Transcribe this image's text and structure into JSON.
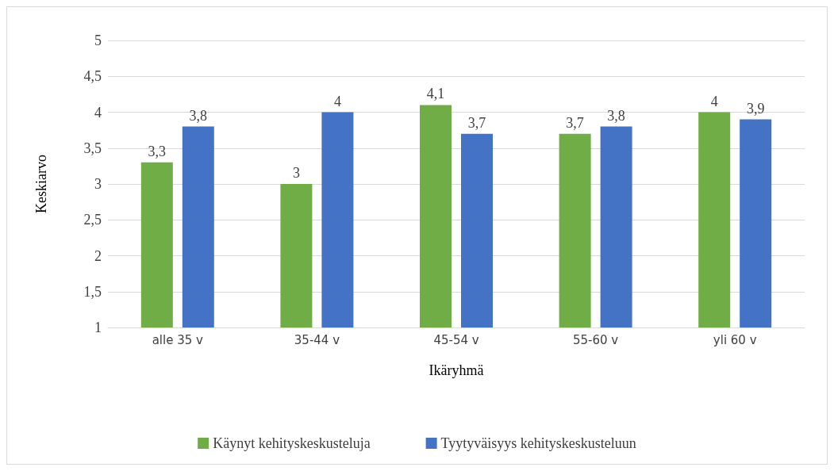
{
  "chart_data": {
    "type": "bar",
    "xlabel": "Ikäryhmä",
    "ylabel": "Keskiarvo",
    "categories": [
      "alle 35 v",
      "35-44 v",
      "45-54 v",
      "55-60 v",
      "yli 60 v"
    ],
    "series": [
      {
        "name": "Käynyt kehityskeskusteluja",
        "color": "#70ad47",
        "values": [
          3.3,
          3.0,
          4.1,
          3.7,
          4.0
        ],
        "value_labels": [
          "3,3",
          "3",
          "4,1",
          "3,7",
          "4"
        ]
      },
      {
        "name": "Tyytyväisyys kehityskeskusteluun",
        "color": "#4472c4",
        "values": [
          3.8,
          4.0,
          3.7,
          3.8,
          3.9
        ],
        "value_labels": [
          "3,8",
          "4",
          "3,7",
          "3,8",
          "3,9"
        ]
      }
    ],
    "ylim": [
      1,
      5
    ],
    "yticks": [
      1,
      {
        "value": 1.5,
        "label": "1,5"
      },
      2,
      {
        "value": 2.5,
        "label": "2,5"
      },
      3,
      {
        "value": 3.5,
        "label": "3,5"
      },
      4,
      {
        "value": 4.5,
        "label": "4,5"
      },
      5
    ],
    "grid": "y",
    "legend": "bottom"
  }
}
